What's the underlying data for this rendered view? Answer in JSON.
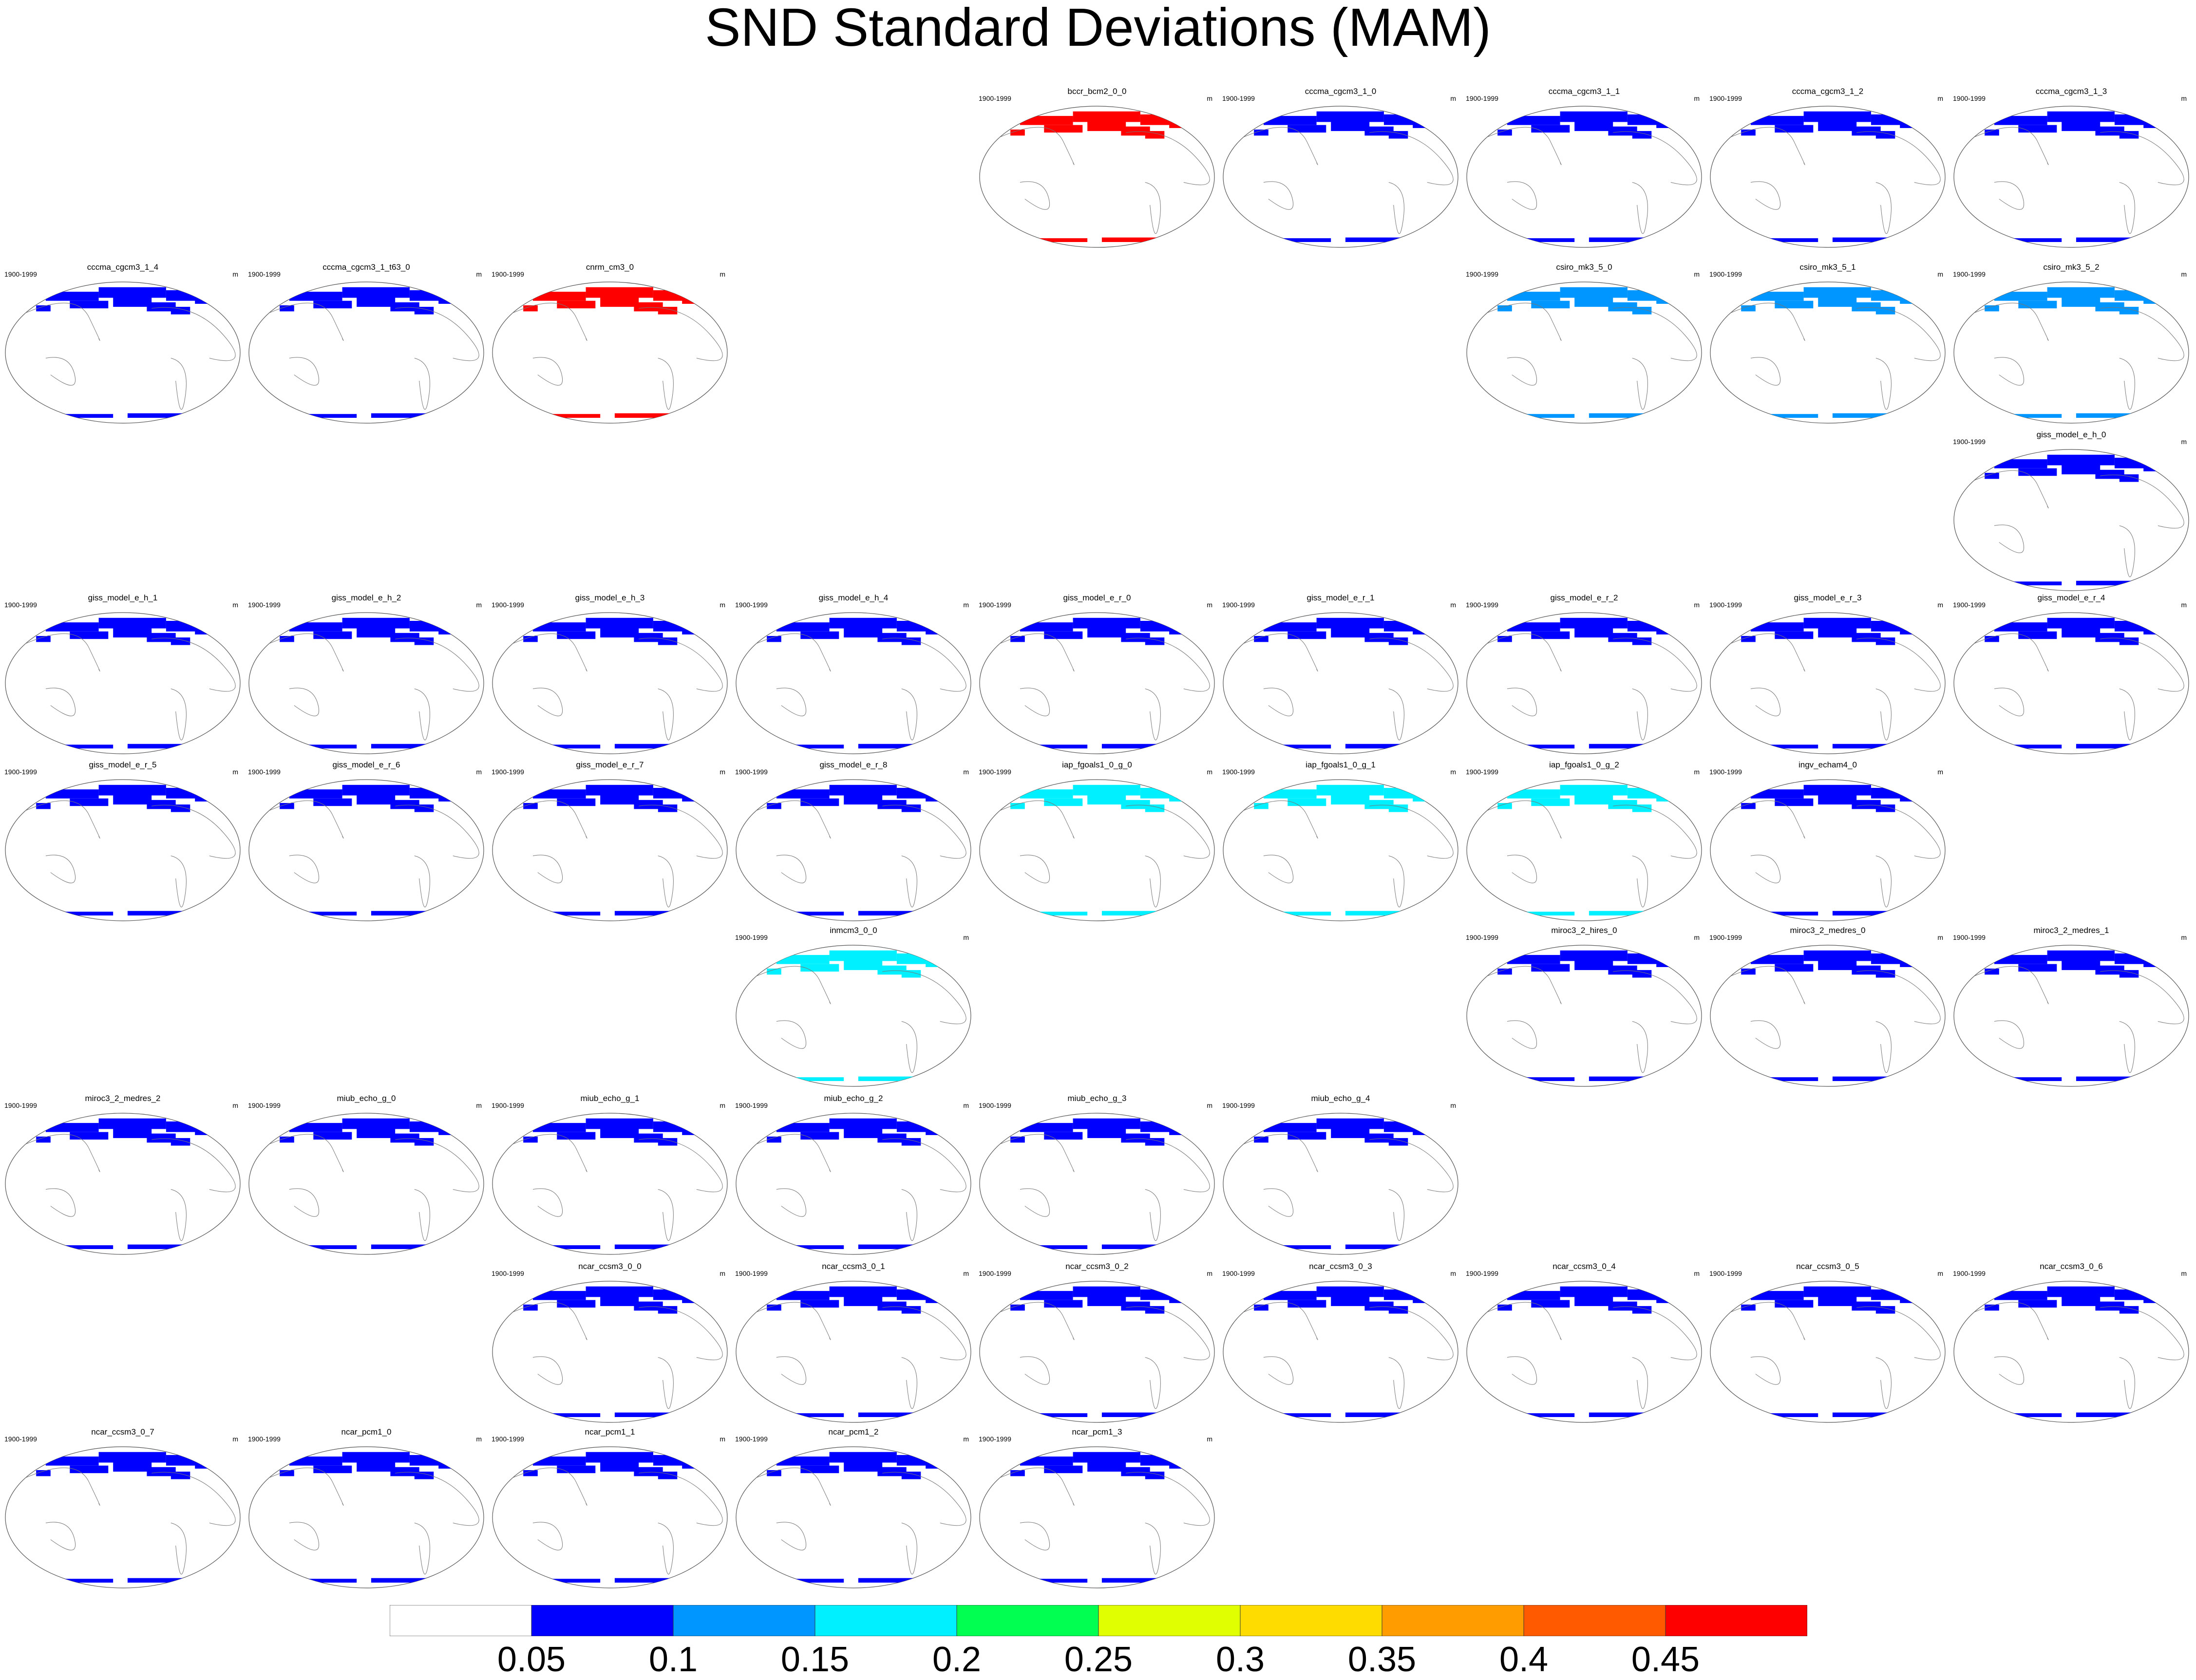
{
  "title": "SND Standard Deviations (MAM)",
  "chart_data": {
    "type": "heatmap",
    "title": "SND Standard Deviations (MAM)",
    "variable": "SND",
    "season": "MAM",
    "projection": "Robinson (Pacific-centred world map)",
    "panel_period": "1900-1999",
    "panel_unit": "m",
    "colorbar": {
      "levels": [
        "0.05",
        "0.1",
        "0.15",
        "0.2",
        "0.25",
        "0.3",
        "0.35",
        "0.4",
        "0.45"
      ],
      "colors": [
        "#FFFFFF",
        "#0000FF",
        "#0096FF",
        "#00F0FF",
        "#00FF50",
        "#E0FF00",
        "#FFDC00",
        "#FF9C00",
        "#FF5A00",
        "#FF0000"
      ]
    },
    "panels": [
      {
        "name": "bccr_bcm2_0_0",
        "row": 0,
        "col": 4,
        "level": 9
      },
      {
        "name": "cccma_cgcm3_1_0",
        "row": 0,
        "col": 5,
        "level": 1
      },
      {
        "name": "cccma_cgcm3_1_1",
        "row": 0,
        "col": 6,
        "level": 1
      },
      {
        "name": "cccma_cgcm3_1_2",
        "row": 0,
        "col": 7,
        "level": 1
      },
      {
        "name": "cccma_cgcm3_1_3",
        "row": 0,
        "col": 8,
        "level": 1
      },
      {
        "name": "cccma_cgcm3_1_4",
        "row": 1,
        "col": 0,
        "level": 1
      },
      {
        "name": "cccma_cgcm3_1_t63_0",
        "row": 1,
        "col": 1,
        "level": 1
      },
      {
        "name": "cnrm_cm3_0",
        "row": 1,
        "col": 2,
        "level": 9
      },
      {
        "name": "csiro_mk3_5_0",
        "row": 1,
        "col": 6,
        "level": 2
      },
      {
        "name": "csiro_mk3_5_1",
        "row": 1,
        "col": 7,
        "level": 2
      },
      {
        "name": "csiro_mk3_5_2",
        "row": 1,
        "col": 8,
        "level": 2
      },
      {
        "name": "giss_model_e_h_0",
        "row": 2,
        "col": 8,
        "level": 1
      },
      {
        "name": "giss_model_e_h_1",
        "row": 3,
        "col": 0,
        "level": 1
      },
      {
        "name": "giss_model_e_h_2",
        "row": 3,
        "col": 1,
        "level": 1
      },
      {
        "name": "giss_model_e_h_3",
        "row": 3,
        "col": 2,
        "level": 1
      },
      {
        "name": "giss_model_e_h_4",
        "row": 3,
        "col": 3,
        "level": 1
      },
      {
        "name": "giss_model_e_r_0",
        "row": 3,
        "col": 4,
        "level": 1
      },
      {
        "name": "giss_model_e_r_1",
        "row": 3,
        "col": 5,
        "level": 1
      },
      {
        "name": "giss_model_e_r_2",
        "row": 3,
        "col": 6,
        "level": 1
      },
      {
        "name": "giss_model_e_r_3",
        "row": 3,
        "col": 7,
        "level": 1
      },
      {
        "name": "giss_model_e_r_4",
        "row": 3,
        "col": 8,
        "level": 1
      },
      {
        "name": "giss_model_e_r_5",
        "row": 4,
        "col": 0,
        "level": 1
      },
      {
        "name": "giss_model_e_r_6",
        "row": 4,
        "col": 1,
        "level": 1
      },
      {
        "name": "giss_model_e_r_7",
        "row": 4,
        "col": 2,
        "level": 1
      },
      {
        "name": "giss_model_e_r_8",
        "row": 4,
        "col": 3,
        "level": 1
      },
      {
        "name": "iap_fgoals1_0_g_0",
        "row": 4,
        "col": 4,
        "level": 3
      },
      {
        "name": "iap_fgoals1_0_g_1",
        "row": 4,
        "col": 5,
        "level": 3
      },
      {
        "name": "iap_fgoals1_0_g_2",
        "row": 4,
        "col": 6,
        "level": 3
      },
      {
        "name": "ingv_echam4_0",
        "row": 4,
        "col": 7,
        "level": 1
      },
      {
        "name": "inmcm3_0_0",
        "row": 5,
        "col": 3,
        "level": 3
      },
      {
        "name": "miroc3_2_hires_0",
        "row": 5,
        "col": 6,
        "level": 1
      },
      {
        "name": "miroc3_2_medres_0",
        "row": 5,
        "col": 7,
        "level": 1
      },
      {
        "name": "miroc3_2_medres_1",
        "row": 5,
        "col": 8,
        "level": 1
      },
      {
        "name": "miroc3_2_medres_2",
        "row": 6,
        "col": 0,
        "level": 1
      },
      {
        "name": "miub_echo_g_0",
        "row": 6,
        "col": 1,
        "level": 1
      },
      {
        "name": "miub_echo_g_1",
        "row": 6,
        "col": 2,
        "level": 1
      },
      {
        "name": "miub_echo_g_2",
        "row": 6,
        "col": 3,
        "level": 1
      },
      {
        "name": "miub_echo_g_3",
        "row": 6,
        "col": 4,
        "level": 1
      },
      {
        "name": "miub_echo_g_4",
        "row": 6,
        "col": 5,
        "level": 1
      },
      {
        "name": "ncar_ccsm3_0_0",
        "row": 7,
        "col": 2,
        "level": 1
      },
      {
        "name": "ncar_ccsm3_0_1",
        "row": 7,
        "col": 3,
        "level": 1
      },
      {
        "name": "ncar_ccsm3_0_2",
        "row": 7,
        "col": 4,
        "level": 1
      },
      {
        "name": "ncar_ccsm3_0_3",
        "row": 7,
        "col": 5,
        "level": 1
      },
      {
        "name": "ncar_ccsm3_0_4",
        "row": 7,
        "col": 6,
        "level": 1
      },
      {
        "name": "ncar_ccsm3_0_5",
        "row": 7,
        "col": 7,
        "level": 1
      },
      {
        "name": "ncar_ccsm3_0_6",
        "row": 7,
        "col": 8,
        "level": 1
      },
      {
        "name": "ncar_ccsm3_0_7",
        "row": 8,
        "col": 0,
        "level": 1
      },
      {
        "name": "ncar_pcm1_0",
        "row": 8,
        "col": 1,
        "level": 1
      },
      {
        "name": "ncar_pcm1_1",
        "row": 8,
        "col": 2,
        "level": 1
      },
      {
        "name": "ncar_pcm1_2",
        "row": 8,
        "col": 3,
        "level": 1
      },
      {
        "name": "ncar_pcm1_3",
        "row": 8,
        "col": 4,
        "level": 1
      }
    ]
  }
}
